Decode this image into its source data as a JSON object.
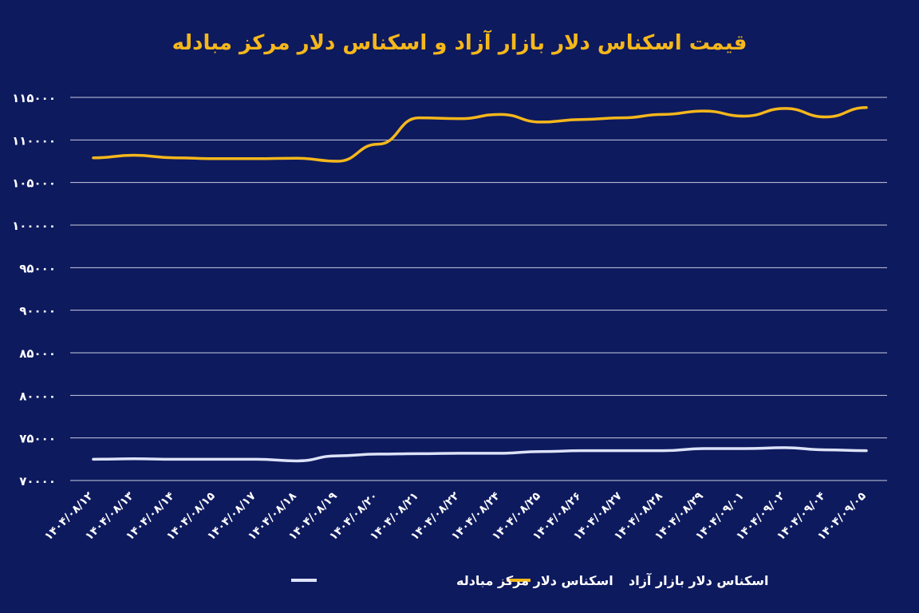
{
  "colors": {
    "background": "#0e1a5e",
    "grid": "#c8cde0",
    "text": "#ffffff",
    "title": "#f5b71b",
    "series_free_market": "#f5b71b",
    "series_exchange_center": "#dde3f8"
  },
  "chart_data": {
    "type": "line",
    "title": "قیمت اسکناس دلار بازار آزاد و اسکناس دلار مرکز مبادله",
    "xlabel": "",
    "ylabel": "",
    "ylim": [
      70000,
      115000
    ],
    "yticks": [
      70000,
      75000,
      80000,
      85000,
      90000,
      95000,
      100000,
      105000,
      110000,
      115000
    ],
    "ytick_labels": [
      "۷۰۰۰۰",
      "۷۵۰۰۰",
      "۸۰۰۰۰",
      "۸۵۰۰۰",
      "۹۰۰۰۰",
      "۹۵۰۰۰",
      "۱۰۰۰۰۰",
      "۱۰۵۰۰۰",
      "۱۱۰۰۰۰",
      "۱۱۵۰۰۰"
    ],
    "grid": true,
    "legend_position": "bottom",
    "categories": [
      "۱۴۰۴/۰۸/۱۲",
      "۱۴۰۴/۰۸/۱۳",
      "۱۴۰۴/۰۸/۱۴",
      "۱۴۰۴/۰۸/۱۵",
      "۱۴۰۴/۰۸/۱۷",
      "۱۴۰۴/۰۸/۱۸",
      "۱۴۰۴/۰۸/۱۹",
      "۱۴۰۴/۰۸/۲۰",
      "۱۴۰۴/۰۸/۲۱",
      "۱۴۰۴/۰۸/۲۲",
      "۱۴۰۴/۰۸/۲۴",
      "۱۴۰۴/۰۸/۲۵",
      "۱۴۰۴/۰۸/۲۶",
      "۱۴۰۴/۰۸/۲۷",
      "۱۴۰۴/۰۸/۲۸",
      "۱۴۰۴/۰۸/۲۹",
      "۱۴۰۴/۰۹/۰۱",
      "۱۴۰۴/۰۹/۰۲",
      "۱۴۰۴/۰۹/۰۴",
      "۱۴۰۴/۰۹/۰۵"
    ],
    "series": [
      {
        "name": "اسکناس دلار بازار آزاد",
        "color_key": "series_free_market",
        "values": [
          107900,
          108200,
          107900,
          107800,
          107800,
          107850,
          107500,
          109500,
          112600,
          112500,
          113000,
          112100,
          112400,
          112600,
          113000,
          113400,
          112800,
          113700,
          112700,
          113800
        ]
      },
      {
        "name": "اسکناس دلار مرکز مبادله",
        "color_key": "series_exchange_center",
        "values": [
          72500,
          72550,
          72500,
          72500,
          72500,
          72300,
          72900,
          73100,
          73150,
          73200,
          73200,
          73400,
          73500,
          73500,
          73500,
          73750,
          73750,
          73850,
          73600,
          73500
        ]
      }
    ]
  }
}
